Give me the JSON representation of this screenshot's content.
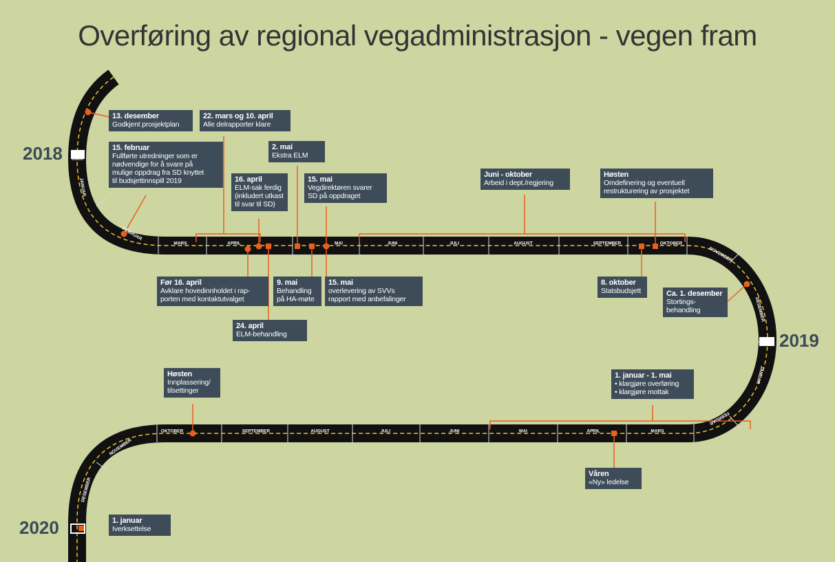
{
  "title": "Overføring av regional vegadministrasjon - vegen fram",
  "years": [
    "2018",
    "2019",
    "2020"
  ],
  "months": [
    "JANUAR",
    "FEBRUAR",
    "MARS",
    "APRIL",
    "MAI",
    "JUNI",
    "JULI",
    "AUGUST",
    "SEPTEMBER",
    "OKTOBER",
    "NOVEMBER",
    "DESEMBER",
    "JANUAR",
    "FEBRUAR",
    "MARS",
    "APRIL",
    "MAI",
    "JUNI",
    "JULI",
    "AUGUST",
    "SEPTEMBER",
    "OKTOBER",
    "NOVEMBER",
    "DESEMBER"
  ],
  "events": [
    {
      "date": "13. desember",
      "lines": [
        "Godkjent prosjektplan"
      ]
    },
    {
      "date": "15. februar",
      "lines": [
        "Fullførte utredninger som er",
        "nødvendige for å svare på",
        "mulige oppdrag fra SD knyttet",
        "til budsjettinnspill 2019"
      ]
    },
    {
      "date": "22. mars og 10. april",
      "lines": [
        "Alle delrapporter klare"
      ]
    },
    {
      "date": "2. mai",
      "lines": [
        "Ekstra ELM"
      ]
    },
    {
      "date": "16. april",
      "lines": [
        "ELM-sak ferdig",
        "(inkludert utkast",
        "til svar til SD)"
      ]
    },
    {
      "date": "15. mai",
      "lines": [
        "Vegdirektøren svarer",
        "SD på oppdraget"
      ]
    },
    {
      "date": "Juni - oktober",
      "lines": [
        "Arbeid i dept./regjering"
      ]
    },
    {
      "date": "Høsten",
      "lines": [
        "Omdefinering og eventuell",
        "restrukturering av prosjektet"
      ]
    },
    {
      "date": "Før 16. april",
      "lines": [
        "Avklare hovedinnholdet i rap-",
        "porten med kontaktutvalget"
      ]
    },
    {
      "date": "24. april",
      "lines": [
        "ELM-behandling"
      ]
    },
    {
      "date": "9. mai",
      "lines": [
        "Behandling",
        "på HA-møte"
      ]
    },
    {
      "date": "15. mai",
      "lines": [
        "overlevering av SVVs",
        "rapport med anbefalinger"
      ]
    },
    {
      "date": "8. oktober",
      "lines": [
        "Statsbudsjett"
      ]
    },
    {
      "date": "Ca. 1. desember",
      "lines": [
        "Stortings-",
        "behandling"
      ]
    },
    {
      "date": "Høsten",
      "lines": [
        "Innplassering/",
        "tilsettinger"
      ]
    },
    {
      "date": "1. januar - 1. mai",
      "lines": [
        "• klargjøre overføring",
        "• klargjøre mottak"
      ]
    },
    {
      "date": "Våren",
      "lines": [
        "«Ny» ledelse"
      ]
    },
    {
      "date": "1. januar",
      "lines": [
        "Iverksettelse"
      ]
    }
  ]
}
